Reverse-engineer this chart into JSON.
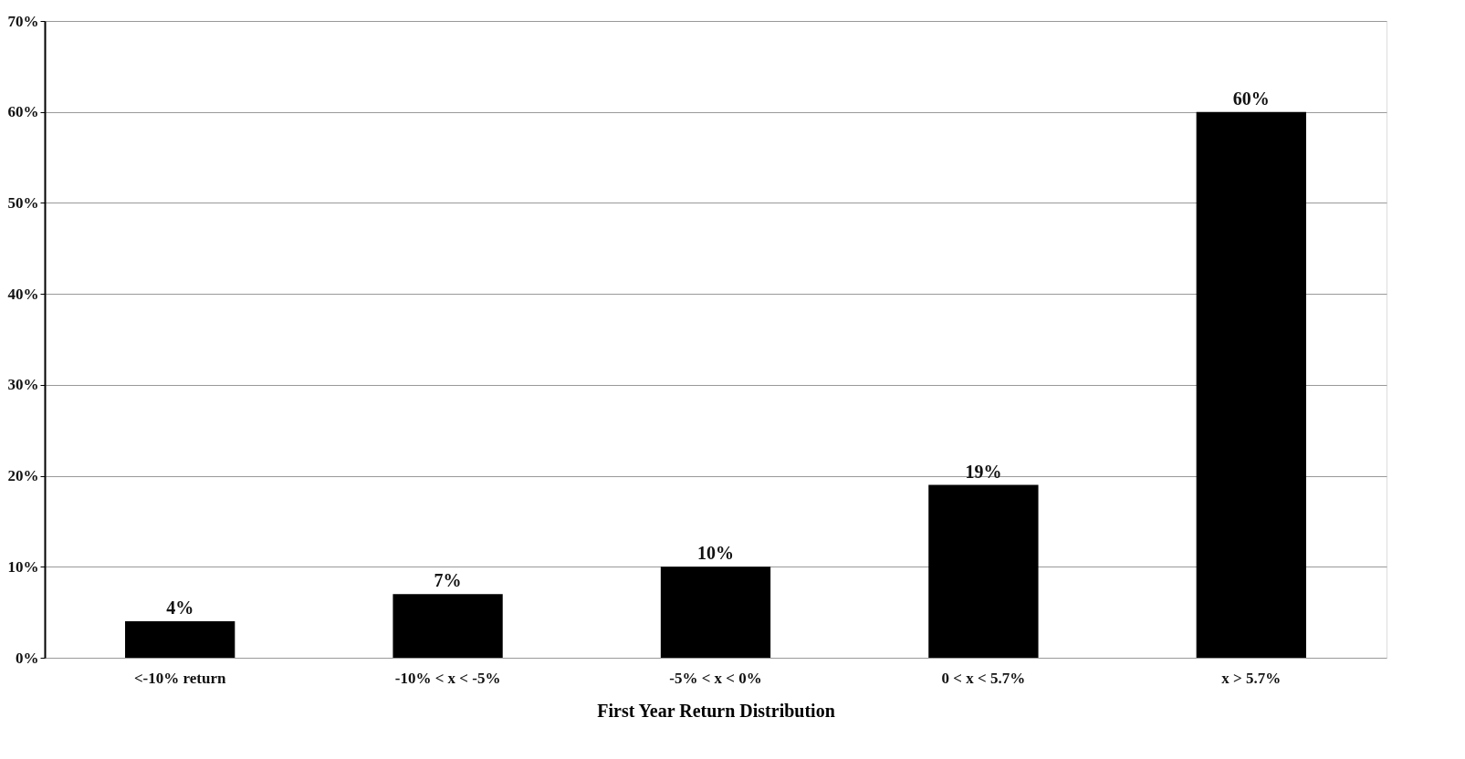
{
  "chart_data": {
    "type": "bar",
    "xlabel": "First Year Return Distribution",
    "categories": [
      "<-10% return",
      "-10% < x < -5%",
      "-5% < x < 0%",
      "0 < x < 5.7%",
      "x > 5.7%"
    ],
    "values": [
      4,
      7,
      10,
      19,
      60
    ],
    "color": "#000000",
    "value_labels": [
      "4%",
      "7%",
      "10%",
      "19%",
      "60%"
    ],
    "ylim": [
      0,
      70
    ],
    "yticks": [
      {
        "value": 0,
        "label": "0%"
      },
      {
        "value": 10,
        "label": "10%"
      },
      {
        "value": 20,
        "label": "20%"
      },
      {
        "value": 30,
        "label": "30%"
      },
      {
        "value": 40,
        "label": "40%"
      },
      {
        "value": 50,
        "label": "50%"
      },
      {
        "value": 60,
        "label": "60%"
      },
      {
        "value": 70,
        "label": "70%"
      }
    ],
    "grid": "y"
  }
}
